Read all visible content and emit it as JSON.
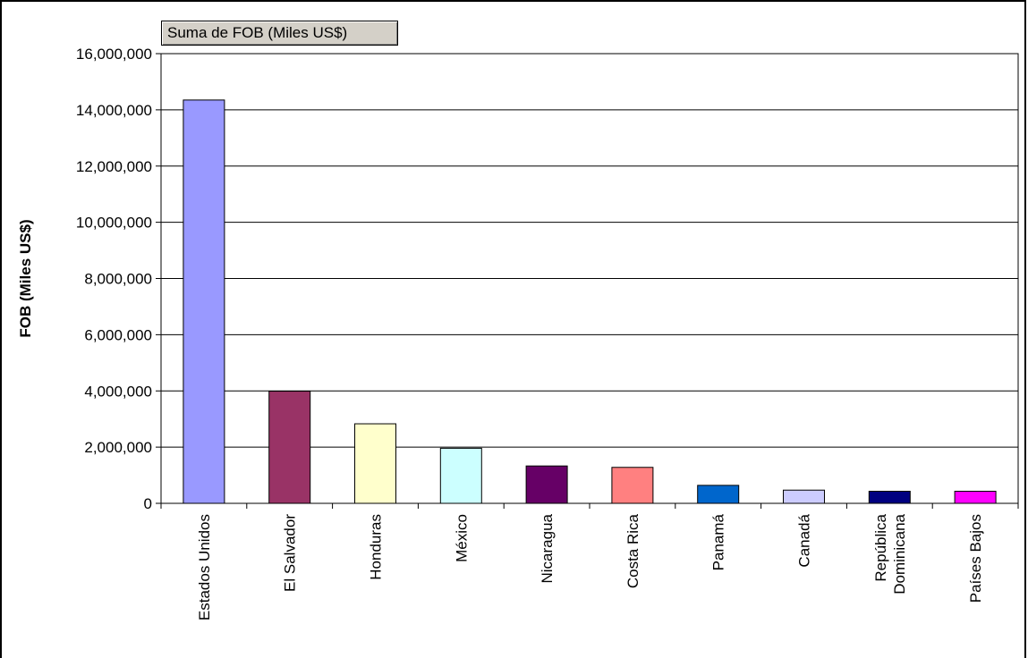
{
  "chart_data": {
    "type": "bar",
    "pivot_field_label": "Suma de FOB (Miles US$)",
    "ylabel": "FOB (Miles US$)",
    "xlabel": "",
    "ylim": [
      0,
      16000000
    ],
    "yticks": [
      0,
      2000000,
      4000000,
      6000000,
      8000000,
      10000000,
      12000000,
      14000000,
      16000000
    ],
    "ytick_labels": [
      "0",
      "2,000,000",
      "4,000,000",
      "6,000,000",
      "8,000,000",
      "10,000,000",
      "12,000,000",
      "14,000,000",
      "16,000,000"
    ],
    "grid": true,
    "categories": [
      [
        "Estados Unidos"
      ],
      [
        "El Salvador"
      ],
      [
        "Honduras"
      ],
      [
        "México"
      ],
      [
        "Nicaragua"
      ],
      [
        "Costa Rica"
      ],
      [
        "Panamá"
      ],
      [
        "Canadá"
      ],
      [
        "República",
        "Dominicana"
      ],
      [
        "Países Bajos"
      ]
    ],
    "values": [
      14350000,
      3990000,
      2830000,
      1960000,
      1330000,
      1280000,
      640000,
      470000,
      430000,
      430000
    ],
    "colors": [
      "#9999ff",
      "#993366",
      "#ffffcc",
      "#ccffff",
      "#660066",
      "#ff8080",
      "#0066cc",
      "#ccccff",
      "#000080",
      "#ff00ff"
    ]
  }
}
